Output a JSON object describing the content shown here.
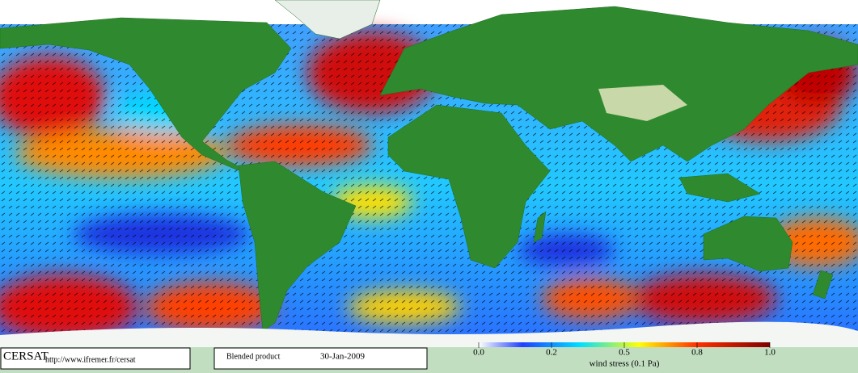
{
  "footer": {
    "logo": "CERSAT",
    "url": "http://www.ifremer.fr/cersat",
    "product": "Blended product",
    "date": "30-Jan-2009"
  },
  "chart_data": {
    "type": "colorbar",
    "xlabel": "wind stress (0.1 Pa)",
    "xlim": [
      0,
      1
    ],
    "xticks": [
      {
        "value": 0,
        "label": "0.0"
      },
      {
        "value": 0.25,
        "label": "0.2"
      },
      {
        "value": 0.5,
        "label": "0.5"
      },
      {
        "value": 0.75,
        "label": "0.8"
      },
      {
        "value": 1,
        "label": "1.0"
      }
    ]
  }
}
